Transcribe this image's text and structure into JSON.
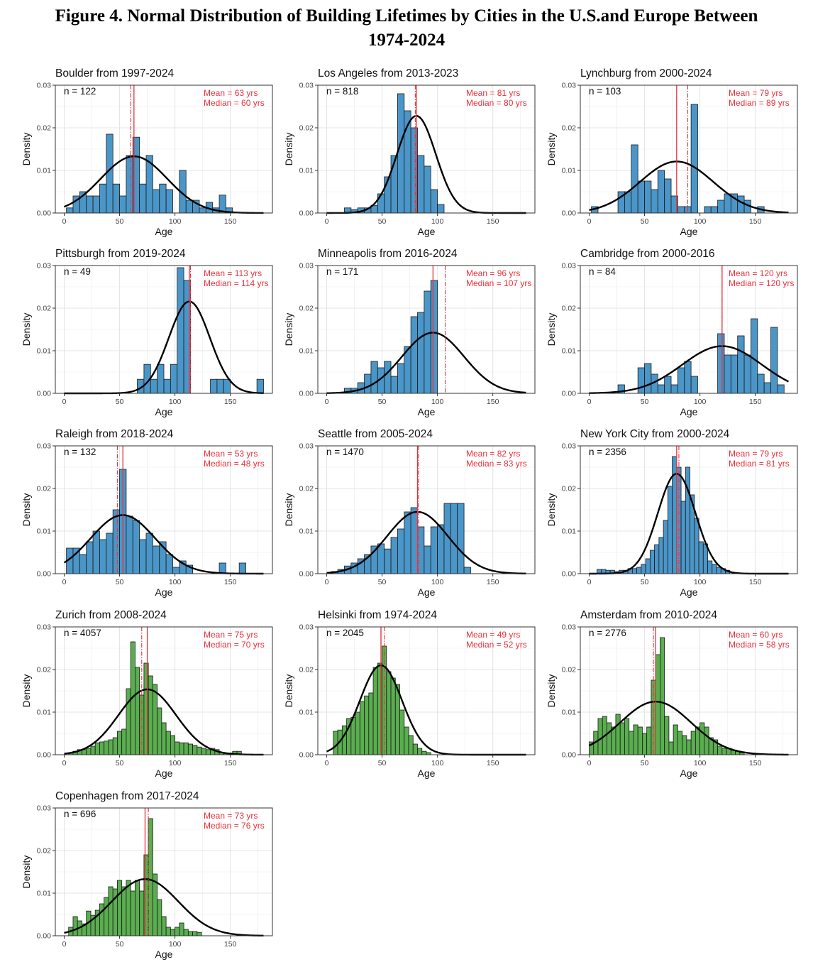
{
  "figure": {
    "title_line1": "Figure 4. Normal Distribution of Building Lifetimes by Cities in the U.S.and Europe Between",
    "title_line2": "1974-2024"
  },
  "colors": {
    "us_fill": "#4b96c8",
    "eu_fill": "#5aae4f",
    "line": "#e8323c",
    "curve": "#000000"
  },
  "chart_data": [
    {
      "type": "bar",
      "title": "Boulder from 1997-2024",
      "region": "us",
      "n_label": "n =  122",
      "mean_label": "Mean = 63 yrs",
      "median_label": "Median = 60 yrs",
      "mean": 63,
      "median": 60,
      "sd": 30,
      "xlabel": "Age",
      "ylabel": "Density",
      "xlim": [
        -8,
        188
      ],
      "ylim": [
        0,
        0.03
      ],
      "xticks": [
        0,
        50,
        100,
        150
      ],
      "yticks": [
        "0.00",
        "0.01",
        "0.02",
        "0.03"
      ],
      "bin_start": 2,
      "bin_width": 6,
      "values": [
        0.0012,
        0.004,
        0.005,
        0.004,
        0.004,
        0.0068,
        0.0185,
        0.0068,
        0.004,
        0.0135,
        0.0178,
        0.0068,
        0.0135,
        0.0055,
        0.0068,
        0.0055,
        0,
        0.01,
        0.003,
        0.003,
        0.0012,
        0.0025,
        0.0012,
        0.0042,
        0.0012
      ]
    },
    {
      "type": "bar",
      "title": "Los Angeles from 2013-2023",
      "region": "us",
      "n_label": "n =  818",
      "mean_label": "Mean = 81 yrs",
      "median_label": "Median = 80 yrs",
      "mean": 81,
      "median": 80,
      "sd": 17.5,
      "xlabel": "Age",
      "ylabel": "Density",
      "xlim": [
        -8,
        188
      ],
      "ylim": [
        0,
        0.03
      ],
      "xticks": [
        0,
        50,
        100,
        150
      ],
      "yticks": [
        "0.00",
        "0.01",
        "0.02",
        "0.03"
      ],
      "bin_start": 16,
      "bin_width": 6,
      "values": [
        0.0012,
        0.0008,
        0.0012,
        0.0012,
        0.0018,
        0.0045,
        0.0085,
        0.0135,
        0.028,
        0.024,
        0.02,
        0.0135,
        0.011,
        0.0055,
        0.002
      ]
    },
    {
      "type": "bar",
      "title": "Lynchburg from 2000-2024",
      "region": "us",
      "n_label": "n =  103",
      "mean_label": "Mean = 79 yrs",
      "median_label": "Median = 89 yrs",
      "mean": 79,
      "median": 89,
      "sd": 33,
      "xlabel": "Age",
      "ylabel": "Density",
      "xlim": [
        -8,
        188
      ],
      "ylim": [
        0,
        0.03
      ],
      "xticks": [
        0,
        50,
        100,
        150
      ],
      "yticks": [
        "0.00",
        "0.01",
        "0.02",
        "0.03"
      ],
      "bin_start": 2,
      "bin_width": 6,
      "values": [
        0.0015,
        0,
        0,
        0,
        0.005,
        0.005,
        0.016,
        0.0075,
        0.0075,
        0.0055,
        0.01,
        0.008,
        0.004,
        0.0015,
        0.0015,
        0.0255,
        0,
        0.0015,
        0.0015,
        0.003,
        0.0045,
        0.0045,
        0.004,
        0.003,
        0,
        0.0015
      ]
    },
    {
      "type": "bar",
      "title": "Pittsburgh from 2019-2024",
      "region": "us",
      "n_label": "n =  49",
      "mean_label": "Mean = 113 yrs",
      "median_label": "Median = 114 yrs",
      "mean": 113,
      "median": 114,
      "sd": 18.5,
      "xlabel": "Age",
      "ylabel": "Density",
      "xlim": [
        -8,
        188
      ],
      "ylim": [
        0,
        0.03
      ],
      "xticks": [
        0,
        50,
        100,
        150
      ],
      "yticks": [
        "0.00",
        "0.01",
        "0.02",
        "0.03"
      ],
      "bin_start": 66,
      "bin_width": 6,
      "values": [
        0.0033,
        0.0068,
        0.0033,
        0.0068,
        0.0033,
        0.0068,
        0.0295,
        0.0265,
        0,
        0,
        0,
        0.0033,
        0.0033,
        0.0033,
        0,
        0,
        0,
        0,
        0.0033
      ]
    },
    {
      "type": "bar",
      "title": "Minneapolis from 2016-2024",
      "region": "us",
      "n_label": "n =  171",
      "mean_label": "Mean = 96 yrs",
      "median_label": "Median = 107 yrs",
      "mean": 96,
      "median": 107,
      "sd": 28,
      "xlabel": "Age",
      "ylabel": "Density",
      "xlim": [
        -8,
        188
      ],
      "ylim": [
        0,
        0.03
      ],
      "xticks": [
        0,
        50,
        100,
        150
      ],
      "yticks": [
        "0.00",
        "0.01",
        "0.02",
        "0.03"
      ],
      "bin_start": 16,
      "bin_width": 6,
      "values": [
        0.0012,
        0.0012,
        0.0025,
        0.0045,
        0.0075,
        0.006,
        0.0075,
        0.004,
        0.007,
        0.011,
        0.018,
        0.019,
        0.024,
        0.0265
      ]
    },
    {
      "type": "bar",
      "title": "Cambridge from 2000-2016",
      "region": "us",
      "n_label": "n =  84",
      "mean_label": "Mean = 120 yrs",
      "median_label": "Median = 120 yrs",
      "mean": 120,
      "median": 120,
      "sd": 36,
      "xlabel": "Age",
      "ylabel": "Density",
      "xlim": [
        -8,
        188
      ],
      "ylim": [
        0,
        0.03
      ],
      "xticks": [
        0,
        50,
        100,
        150
      ],
      "yticks": [
        "0.00",
        "0.01",
        "0.02",
        "0.03"
      ],
      "bin_start": 26,
      "bin_width": 6,
      "values": [
        0.002,
        0,
        0,
        0.006,
        0.007,
        0.0045,
        0.002,
        0.004,
        0.002,
        0.006,
        0.0075,
        0.004,
        0,
        0,
        0,
        0.014,
        0.009,
        0.009,
        0.0135,
        0.009,
        0.0175,
        0.0045,
        0.0025,
        0.0155,
        0.002
      ]
    },
    {
      "type": "bar",
      "title": "Raleigh from 2018-2024",
      "region": "us",
      "n_label": "n =  132",
      "mean_label": "Mean = 53 yrs",
      "median_label": "Median = 48 yrs",
      "mean": 53,
      "median": 48,
      "sd": 29,
      "xlabel": "Age",
      "ylabel": "Density",
      "xlim": [
        -8,
        188
      ],
      "ylim": [
        0,
        0.03
      ],
      "xticks": [
        0,
        50,
        100,
        150
      ],
      "yticks": [
        "0.00",
        "0.01",
        "0.02",
        "0.03"
      ],
      "bin_start": 2,
      "bin_width": 6,
      "values": [
        0.006,
        0.006,
        0.0045,
        0.0075,
        0.01,
        0.008,
        0.0095,
        0.015,
        0.0245,
        0.0135,
        0.0125,
        0.008,
        0.0095,
        0.0065,
        0.0075,
        0.0045,
        0.0015,
        0.003,
        0.002,
        0,
        0,
        0,
        0,
        0.0025,
        0,
        0,
        0.0025
      ]
    },
    {
      "type": "bar",
      "title": "Seattle from 2005-2024",
      "region": "us",
      "n_label": "n =  1470",
      "mean_label": "Mean = 82 yrs",
      "median_label": "Median = 83 yrs",
      "mean": 82,
      "median": 83,
      "sd": 27.5,
      "xlabel": "Age",
      "ylabel": "Density",
      "xlim": [
        -8,
        188
      ],
      "ylim": [
        0,
        0.03
      ],
      "xticks": [
        0,
        50,
        100,
        150
      ],
      "yticks": [
        "0.00",
        "0.01",
        "0.02",
        "0.03"
      ],
      "bin_start": 4,
      "bin_width": 6,
      "values": [
        0.0005,
        0.001,
        0.0018,
        0.0025,
        0.0035,
        0.0045,
        0.0065,
        0.007,
        0.0058,
        0.0085,
        0.0105,
        0.0145,
        0.0155,
        0.011,
        0.0065,
        0.011,
        0.0115,
        0.0165,
        0.0165,
        0.0165,
        0.0015
      ]
    },
    {
      "type": "bar",
      "title": "New York City from 2000-2024",
      "region": "us",
      "n_label": "n =  2356",
      "mean_label": "Mean = 79 yrs",
      "median_label": "Median = 81 yrs",
      "mean": 79,
      "median": 81,
      "sd": 17,
      "xlabel": "Age",
      "ylabel": "Density",
      "xlim": [
        -8,
        188
      ],
      "ylim": [
        0,
        0.03
      ],
      "xticks": [
        0,
        50,
        100,
        150
      ],
      "yticks": [
        "0.00",
        "0.01",
        "0.02",
        "0.03"
      ],
      "bin_start": 7,
      "bin_width": 4,
      "values": [
        0.001,
        0.001,
        0.0008,
        0.0008,
        0.0005,
        0.0008,
        0.0008,
        0.0012,
        0.0012,
        0.0015,
        0.0022,
        0.0035,
        0.0055,
        0.0068,
        0.0085,
        0.0125,
        0.0205,
        0.0275,
        0.025,
        0.017,
        0.025,
        0.0185,
        0.013,
        0.0075,
        0.007,
        0.003,
        0.0022,
        0.0015,
        0.0012,
        0.0008
      ]
    },
    {
      "type": "bar",
      "title": "Zurich from 2008-2024",
      "region": "eu",
      "n_label": "n =  4057",
      "mean_label": "Mean = 75 yrs",
      "median_label": "Median = 70 yrs",
      "mean": 75,
      "median": 70,
      "sd": 26,
      "xlabel": "Age",
      "ylabel": "Density",
      "xlim": [
        -8,
        188
      ],
      "ylim": [
        0,
        0.03
      ],
      "xticks": [
        0,
        50,
        100,
        150
      ],
      "yticks": [
        "0.00",
        "0.01",
        "0.02",
        "0.03"
      ],
      "bin_start": 4,
      "bin_width": 4,
      "values": [
        0.0005,
        0.0008,
        0.0012,
        0.0012,
        0.0015,
        0.002,
        0.0028,
        0.003,
        0.0032,
        0.0035,
        0.004,
        0.0055,
        0.006,
        0.0155,
        0.0265,
        0.0205,
        0.014,
        0.0215,
        0.0185,
        0.0165,
        0.011,
        0.0075,
        0.0055,
        0.0045,
        0.003,
        0.0028,
        0.0028,
        0.0025,
        0.0022,
        0.0018,
        0.0015,
        0.0012,
        0.0015,
        0.0012,
        0.0005,
        0.0004,
        0.0004,
        0.0008,
        0.0008
      ]
    },
    {
      "type": "bar",
      "title": "Helsinki from 1974-2024",
      "region": "eu",
      "n_label": "n =  2045",
      "mean_label": "Mean = 49 yrs",
      "median_label": "Median = 52 yrs",
      "mean": 49,
      "median": 52,
      "sd": 19,
      "xlabel": "Age",
      "ylabel": "Density",
      "xlim": [
        -8,
        188
      ],
      "ylim": [
        0,
        0.03
      ],
      "xticks": [
        0,
        50,
        100,
        150
      ],
      "yticks": [
        "0.00",
        "0.01",
        "0.02",
        "0.03"
      ],
      "bin_start": 6,
      "bin_width": 4,
      "values": [
        0.0055,
        0.0058,
        0.0068,
        0.0085,
        0.0088,
        0.01,
        0.0125,
        0.0138,
        0.0145,
        0.0205,
        0.0215,
        0.0255,
        0.0195,
        0.018,
        0.0165,
        0.0105,
        0.0065,
        0.0045,
        0.0025,
        0.0015,
        0.0008,
        0.0005
      ]
    },
    {
      "type": "bar",
      "title": "Amsterdam from 2010-2024",
      "region": "eu",
      "n_label": "n =  2776",
      "mean_label": "Mean = 60 yrs",
      "median_label": "Median = 58 yrs",
      "mean": 60,
      "median": 58,
      "sd": 32,
      "xlabel": "Age",
      "ylabel": "Density",
      "xlim": [
        -8,
        188
      ],
      "ylim": [
        0,
        0.03
      ],
      "xticks": [
        0,
        50,
        100,
        150
      ],
      "yticks": [
        "0.00",
        "0.01",
        "0.02",
        "0.03"
      ],
      "bin_start": 0,
      "bin_width": 4,
      "values": [
        0.003,
        0.0055,
        0.0085,
        0.009,
        0.0075,
        0.0065,
        0.0095,
        0.0075,
        0.0085,
        0.0055,
        0.007,
        0.0065,
        0.005,
        0.0065,
        0.0175,
        0.0235,
        0.0275,
        0.009,
        0.003,
        0.007,
        0.0055,
        0.0045,
        0.0035,
        0.0055,
        0.0065,
        0.0075,
        0.0065,
        0.004,
        0.0035,
        0.002,
        0.0015,
        0.0015,
        0.001,
        0.0008,
        0.0005
      ]
    },
    {
      "type": "bar",
      "title": "Copenhagen from 2017-2024",
      "region": "eu",
      "n_label": "n =  696",
      "mean_label": "Mean = 73 yrs",
      "median_label": "Median = 76 yrs",
      "mean": 73,
      "median": 76,
      "sd": 30,
      "xlabel": "Age",
      "ylabel": "Density",
      "xlim": [
        -8,
        188
      ],
      "ylim": [
        0,
        0.03
      ],
      "xticks": [
        0,
        50,
        100,
        150
      ],
      "yticks": [
        "0.00",
        "0.01",
        "0.02",
        "0.03"
      ],
      "bin_start": 4,
      "bin_width": 4,
      "values": [
        0.002,
        0.0045,
        0.0035,
        0.0028,
        0.0058,
        0.0048,
        0.006,
        0.0075,
        0.009,
        0.0115,
        0.011,
        0.013,
        0.0115,
        0.013,
        0.0105,
        0.013,
        0.0105,
        0.019,
        0.0275,
        0.0145,
        0.0085,
        0.0045,
        0.002,
        0.0015,
        0.002,
        0.003,
        0.0015,
        0.001,
        0.001,
        0.0008
      ]
    }
  ]
}
